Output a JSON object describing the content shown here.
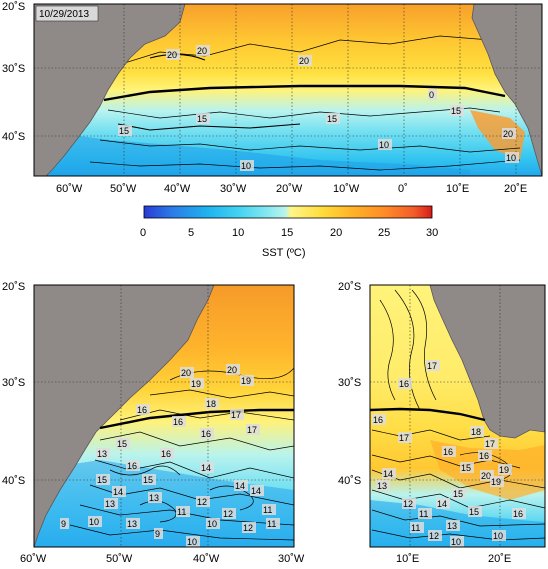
{
  "date": "10/29/2013",
  "colors": {
    "land": "#8f8a88",
    "section_line": "#000000",
    "cmap": [
      "#2a3bd6",
      "#2b7de8",
      "#1fb3ef",
      "#44d3f2",
      "#7fe6f0",
      "#b9f3ee",
      "#fff68a",
      "#ffdc3b",
      "#ffb428",
      "#ff8a28",
      "#f25a2a",
      "#d61c1c"
    ]
  },
  "colorbar": {
    "label": "SST (ºC)",
    "ticks": [
      "0",
      "5",
      "10",
      "15",
      "20",
      "25",
      "30"
    ],
    "range": [
      0,
      30
    ]
  },
  "panels": {
    "top": {
      "lat_labels": [
        "20˚S",
        "30˚S",
        "40˚S"
      ],
      "lon_labels": [
        "60˚W",
        "50˚W",
        "40˚W",
        "30˚W",
        "20˚W",
        "10˚W",
        "0˚",
        "10˚E",
        "20˚E"
      ],
      "contour_labels": [
        "20",
        "20",
        "20",
        "15",
        "15",
        "15",
        "15",
        "10",
        "10",
        "10",
        "20",
        "0"
      ]
    },
    "bottom_left": {
      "lat_labels": [
        "20˚S",
        "30˚S",
        "40˚S"
      ],
      "lon_labels": [
        "60˚W",
        "50˚W",
        "40˚W",
        "30˚W"
      ],
      "contour_labels": [
        "20",
        "19",
        "20",
        "19",
        "18",
        "17",
        "16",
        "16",
        "16",
        "17",
        "15",
        "16",
        "15",
        "14",
        "13",
        "15",
        "16",
        "14",
        "14",
        "13",
        "12",
        "11",
        "14",
        "11",
        "12",
        "10",
        "9",
        "10",
        "13",
        "12",
        "11",
        "13",
        "9",
        "10"
      ]
    },
    "bottom_right": {
      "lat_labels": [
        "20˚S",
        "30˚S",
        "40˚S"
      ],
      "lon_labels": [
        "10˚E",
        "20˚E"
      ],
      "contour_labels": [
        "17",
        "16",
        "16",
        "17",
        "18",
        "17",
        "16",
        "15",
        "16",
        "19",
        "20",
        "14",
        "13",
        "15",
        "12",
        "11",
        "14",
        "16",
        "15",
        "13",
        "12",
        "10",
        "11",
        "19",
        "10"
      ]
    }
  }
}
